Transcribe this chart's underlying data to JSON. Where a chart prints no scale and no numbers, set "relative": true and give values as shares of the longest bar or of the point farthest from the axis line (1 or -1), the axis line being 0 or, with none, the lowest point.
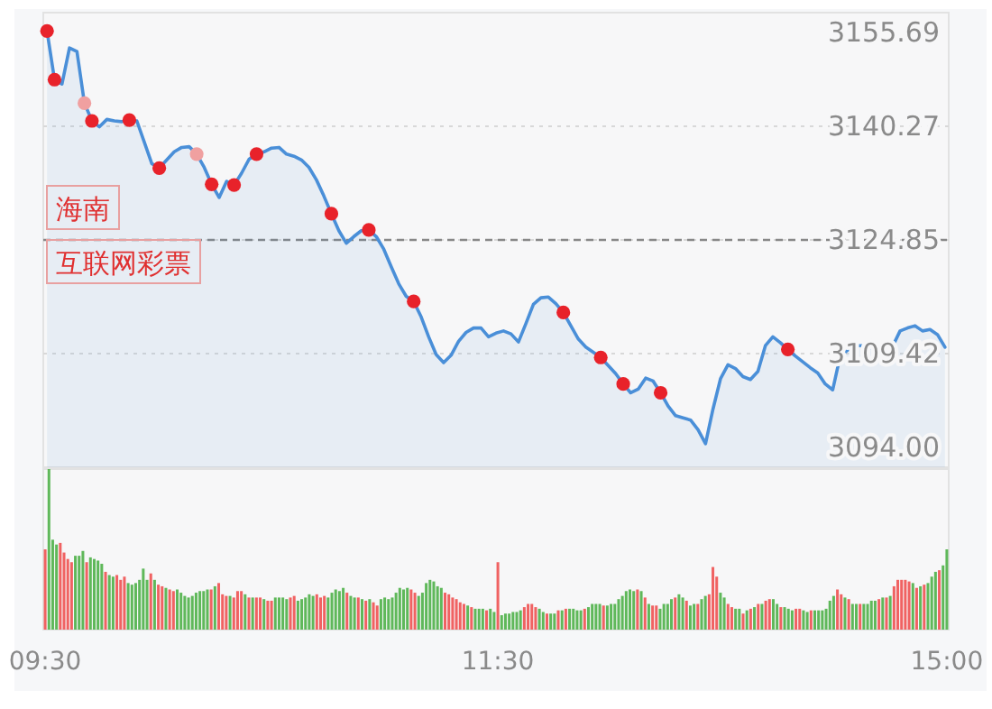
{
  "chart_data": [
    {
      "type": "area",
      "ylim": [
        3094,
        3155.69
      ],
      "yticks": [
        3155.69,
        3140.27,
        3124.85,
        3109.42,
        {
          "value": 3094,
          "label": "3094.00"
        }
      ],
      "tick_labels": "y",
      "grid": "y",
      "ref_lines": [
        {
          "axis": "y",
          "value": 3124.85,
          "color": "#888888",
          "line_style": "dashed"
        }
      ],
      "annotations": [
        "海南",
        "互联网彩票"
      ],
      "categories": [
        null,
        null,
        null,
        null,
        null,
        null,
        null,
        null,
        null,
        null,
        null,
        null,
        null,
        null,
        null,
        null,
        null,
        null,
        null,
        null,
        null,
        null,
        null,
        null,
        null,
        null,
        null,
        null,
        null,
        null,
        null,
        null,
        null,
        null,
        null,
        null,
        null,
        null,
        null,
        null,
        null,
        null,
        null,
        null,
        null,
        null,
        null,
        null,
        null,
        null,
        null,
        null,
        null,
        null,
        null,
        null,
        null,
        null,
        null,
        null,
        null,
        null,
        null,
        null,
        null,
        null,
        null,
        null,
        null,
        null,
        null,
        null,
        null,
        null,
        null,
        null,
        null,
        null,
        null,
        null,
        null,
        null,
        null,
        null,
        null,
        null,
        null,
        null,
        null,
        null,
        null,
        null,
        null,
        null,
        null,
        null,
        null,
        null,
        null,
        null,
        null,
        null,
        null,
        null,
        null,
        null,
        null,
        null,
        null,
        null,
        null,
        null,
        null,
        null,
        null,
        null,
        null,
        null,
        null,
        null,
        null
      ],
      "series": [
        {
          "color": "#4a8fd8",
          "values": [
            3153.2,
            3146.6,
            3146.0,
            3150.9,
            3150.4,
            3143.4,
            3141.0,
            3140.2,
            3141.2,
            3141.0,
            3140.9,
            3141.1,
            3141.0,
            3138.1,
            3135.2,
            3134.6,
            3135.7,
            3136.8,
            3137.4,
            3137.5,
            3136.5,
            3134.7,
            3132.4,
            3130.6,
            3132.8,
            3132.3,
            3133.9,
            3135.8,
            3136.5,
            3136.8,
            3137.3,
            3137.4,
            3136.5,
            3136.2,
            3135.7,
            3134.7,
            3133.0,
            3130.8,
            3128.4,
            3126.1,
            3124.4,
            3125.3,
            3126.1,
            3126.2,
            3125.3,
            3123.6,
            3121.2,
            3118.9,
            3117.2,
            3116.5,
            3114.4,
            3111.7,
            3109.3,
            3108.2,
            3109.2,
            3111.1,
            3112.3,
            3112.9,
            3112.9,
            3111.7,
            3112.2,
            3112.5,
            3112.1,
            3111.0,
            3113.5,
            3116.1,
            3117.0,
            3117.1,
            3116.2,
            3115.0,
            3113.2,
            3111.4,
            3110.3,
            3109.6,
            3108.9,
            3107.8,
            3106.7,
            3105.3,
            3104.1,
            3104.6,
            3106.1,
            3105.7,
            3104.1,
            3102.3,
            3101.0,
            3100.7,
            3100.4,
            3099.1,
            3097.2,
            3101.9,
            3106.0,
            3107.9,
            3107.4,
            3106.3,
            3105.9,
            3107.0,
            3110.5,
            3111.7,
            3110.9,
            3110.0,
            3109.1,
            3108.3,
            3107.5,
            3106.8,
            3105.3,
            3104.5,
            3109.1,
            3109.9,
            3110.5,
            3110.5,
            3110.4,
            3109.3,
            3108.2,
            3110.4,
            3112.5,
            3112.9,
            3113.2,
            3112.5,
            3112.7,
            3112.0,
            3110.3
          ]
        },
        {
          "type": "scatter",
          "marker": "circle",
          "values": [
            3153.2,
            3146.6,
            null,
            null,
            null,
            3143.4,
            3141.0,
            null,
            null,
            null,
            null,
            3141.1,
            null,
            null,
            null,
            3134.6,
            null,
            null,
            null,
            null,
            3136.5,
            null,
            3132.4,
            null,
            null,
            3132.3,
            null,
            null,
            3136.5,
            null,
            null,
            null,
            null,
            null,
            null,
            null,
            null,
            null,
            3128.4,
            null,
            null,
            null,
            null,
            3126.2,
            null,
            null,
            null,
            null,
            null,
            3116.5,
            null,
            null,
            null,
            null,
            null,
            null,
            null,
            null,
            null,
            null,
            null,
            null,
            null,
            null,
            null,
            null,
            null,
            null,
            null,
            3115.0,
            null,
            null,
            null,
            null,
            3108.9,
            null,
            null,
            3105.3,
            null,
            null,
            null,
            null,
            3104.1,
            null,
            null,
            null,
            null,
            null,
            null,
            null,
            null,
            null,
            null,
            null,
            null,
            null,
            null,
            null,
            null,
            3110.0,
            null,
            null,
            null,
            null,
            null,
            null,
            null,
            null,
            null,
            null,
            null,
            null,
            null,
            null,
            null,
            null,
            null,
            null,
            null,
            null,
            null
          ],
          "colors": [
            "#e8222a",
            "#e8222a",
            null,
            null,
            null,
            "#f0a0a0",
            "#e8222a",
            null,
            null,
            null,
            null,
            "#e8222a",
            null,
            null,
            null,
            "#e8222a",
            null,
            null,
            null,
            null,
            "#f0a0a0",
            null,
            "#e8222a",
            null,
            null,
            "#e8222a",
            null,
            null,
            "#e8222a",
            null,
            null,
            null,
            null,
            null,
            null,
            null,
            null,
            null,
            "#e8222a",
            null,
            null,
            null,
            null,
            "#e8222a",
            null,
            null,
            null,
            null,
            null,
            "#e8222a",
            null,
            null,
            null,
            null,
            null,
            null,
            null,
            null,
            null,
            null,
            null,
            null,
            null,
            null,
            null,
            null,
            null,
            null,
            null,
            "#e8222a",
            null,
            null,
            null,
            null,
            "#e8222a",
            null,
            null,
            "#e8222a",
            null,
            null,
            null,
            null,
            "#e8222a",
            null,
            null,
            null,
            null,
            null,
            null,
            null,
            null,
            null,
            null,
            null,
            null,
            null,
            null,
            null,
            null,
            "#e8222a",
            null,
            null,
            null,
            null,
            null,
            null,
            null,
            null,
            null,
            null,
            null,
            null,
            null,
            null,
            null,
            null,
            null,
            null,
            null,
            null,
            null
          ]
        }
      ]
    },
    {
      "type": "bar",
      "relative": true,
      "tick_labels": "x",
      "categories": [
        "09:30",
        null,
        null,
        null,
        null,
        null,
        null,
        null,
        null,
        null,
        null,
        null,
        null,
        null,
        null,
        null,
        null,
        null,
        null,
        null,
        null,
        null,
        null,
        null,
        null,
        null,
        null,
        null,
        null,
        null,
        null,
        null,
        null,
        null,
        null,
        null,
        null,
        null,
        null,
        null,
        null,
        null,
        null,
        null,
        null,
        null,
        null,
        null,
        null,
        null,
        null,
        null,
        null,
        null,
        null,
        null,
        null,
        null,
        null,
        null,
        null,
        null,
        null,
        null,
        null,
        null,
        null,
        null,
        null,
        null,
        null,
        null,
        null,
        null,
        null,
        null,
        null,
        null,
        null,
        null,
        null,
        null,
        null,
        null,
        null,
        null,
        null,
        null,
        null,
        null,
        null,
        null,
        null,
        null,
        null,
        null,
        null,
        null,
        null,
        null,
        null,
        null,
        null,
        null,
        null,
        null,
        null,
        null,
        null,
        null,
        null,
        null,
        null,
        null,
        null,
        null,
        null,
        null,
        null,
        null,
        "11:30",
        null,
        null,
        null,
        null,
        null,
        null,
        null,
        null,
        null,
        null,
        null,
        null,
        null,
        null,
        null,
        null,
        null,
        null,
        null,
        null,
        null,
        null,
        null,
        null,
        null,
        null,
        null,
        null,
        null,
        null,
        null,
        null,
        null,
        null,
        null,
        null,
        null,
        null,
        null,
        null,
        null,
        null,
        null,
        null,
        null,
        null,
        null,
        null,
        null,
        null,
        null,
        null,
        null,
        null,
        null,
        null,
        null,
        null,
        null,
        null,
        null,
        null,
        null,
        null,
        null,
        null,
        null,
        null,
        null,
        null,
        null,
        null,
        null,
        null,
        null,
        null,
        null,
        null,
        null,
        null,
        null,
        null,
        null,
        null,
        null,
        null,
        null,
        null,
        null,
        null,
        null,
        null,
        null,
        null,
        null,
        null,
        null,
        null,
        null,
        null,
        null,
        null,
        null,
        null,
        null,
        null,
        null,
        null,
        null,
        null,
        null,
        null,
        null,
        null,
        null,
        null,
        null,
        null,
        "15:00"
      ],
      "values": [
        0.5,
        1.0,
        0.56,
        0.53,
        0.54,
        0.48,
        0.44,
        0.42,
        0.46,
        0.46,
        0.49,
        0.42,
        0.45,
        0.44,
        0.43,
        0.41,
        0.36,
        0.34,
        0.33,
        0.34,
        0.31,
        0.33,
        0.29,
        0.28,
        0.29,
        0.31,
        0.38,
        0.31,
        0.35,
        0.31,
        0.28,
        0.27,
        0.26,
        0.25,
        0.24,
        0.25,
        0.23,
        0.21,
        0.2,
        0.21,
        0.23,
        0.24,
        0.24,
        0.25,
        0.25,
        0.27,
        0.29,
        0.22,
        0.21,
        0.21,
        0.2,
        0.24,
        0.24,
        0.22,
        0.2,
        0.2,
        0.2,
        0.2,
        0.19,
        0.18,
        0.18,
        0.2,
        0.2,
        0.2,
        0.19,
        0.2,
        0.21,
        0.18,
        0.19,
        0.2,
        0.22,
        0.21,
        0.22,
        0.2,
        0.21,
        0.2,
        0.23,
        0.25,
        0.24,
        0.26,
        0.23,
        0.21,
        0.2,
        0.2,
        0.19,
        0.18,
        0.19,
        0.17,
        0.15,
        0.19,
        0.2,
        0.19,
        0.2,
        0.23,
        0.26,
        0.25,
        0.26,
        0.25,
        0.23,
        0.21,
        0.23,
        0.29,
        0.31,
        0.3,
        0.27,
        0.26,
        0.23,
        0.22,
        0.2,
        0.19,
        0.17,
        0.16,
        0.15,
        0.14,
        0.13,
        0.13,
        0.13,
        0.12,
        0.13,
        0.11,
        0.42,
        0.09,
        0.1,
        0.1,
        0.11,
        0.11,
        0.12,
        0.14,
        0.16,
        0.16,
        0.14,
        0.13,
        0.11,
        0.1,
        0.1,
        0.1,
        0.12,
        0.12,
        0.13,
        0.13,
        0.13,
        0.12,
        0.12,
        0.13,
        0.14,
        0.16,
        0.16,
        0.16,
        0.15,
        0.15,
        0.16,
        0.16,
        0.19,
        0.21,
        0.24,
        0.25,
        0.24,
        0.25,
        0.24,
        0.2,
        0.16,
        0.15,
        0.15,
        0.13,
        0.16,
        0.16,
        0.19,
        0.2,
        0.22,
        0.2,
        0.18,
        0.15,
        0.16,
        0.16,
        0.19,
        0.21,
        0.22,
        0.39,
        0.33,
        0.23,
        0.2,
        0.16,
        0.14,
        0.13,
        0.13,
        0.1,
        0.12,
        0.13,
        0.14,
        0.16,
        0.16,
        0.18,
        0.19,
        0.19,
        0.16,
        0.14,
        0.14,
        0.13,
        0.12,
        0.13,
        0.13,
        0.12,
        0.11,
        0.12,
        0.12,
        0.12,
        0.12,
        0.13,
        0.18,
        0.21,
        0.25,
        0.22,
        0.2,
        0.19,
        0.16,
        0.16,
        0.16,
        0.16,
        0.16,
        0.18,
        0.18,
        0.19,
        0.2,
        0.2,
        0.21,
        0.27,
        0.31,
        0.31,
        0.31,
        0.3,
        0.29,
        0.26,
        0.27,
        0.28,
        0.29,
        0.33,
        0.36,
        0.37,
        0.4,
        0.5
      ],
      "colors": [
        "#f06262",
        "#5fb85a",
        "#5fb85a",
        "#5fb85a",
        "#f06262",
        "#f06262",
        "#f06262",
        "#f06262",
        "#5fb85a",
        "#5fb85a",
        "#5fb85a",
        "#f06262",
        "#5fb85a",
        "#5fb85a",
        "#5fb85a",
        "#5fb85a",
        "#f06262",
        "#5fb85a",
        "#5fb85a",
        "#f06262",
        "#f06262",
        "#f06262",
        "#5fb85a",
        "#5fb85a",
        "#5fb85a",
        "#5fb85a",
        "#5fb85a",
        "#5fb85a",
        "#f06262",
        "#5fb85a",
        "#f06262",
        "#f06262",
        "#5fb85a",
        "#f06262",
        "#f06262",
        "#5fb85a",
        "#5fb85a",
        "#5fb85a",
        "#5fb85a",
        "#5fb85a",
        "#5fb85a",
        "#5fb85a",
        "#5fb85a",
        "#5fb85a",
        "#f06262",
        "#5fb85a",
        "#f06262",
        "#f06262",
        "#f06262",
        "#5fb85a",
        "#f06262",
        "#f06262",
        "#f06262",
        "#5fb85a",
        "#f06262",
        "#5fb85a",
        "#f06262",
        "#f06262",
        "#5fb85a",
        "#f06262",
        "#f06262",
        "#5fb85a",
        "#5fb85a",
        "#5fb85a",
        "#5fb85a",
        "#f06262",
        "#f06262",
        "#5fb85a",
        "#5fb85a",
        "#5fb85a",
        "#5fb85a",
        "#5fb85a",
        "#f06262",
        "#f06262",
        "#f06262",
        "#5fb85a",
        "#5fb85a",
        "#5fb85a",
        "#5fb85a",
        "#5fb85a",
        "#f06262",
        "#5fb85a",
        "#5fb85a",
        "#f06262",
        "#5fb85a",
        "#f06262",
        "#5fb85a",
        "#f06262",
        "#f06262",
        "#5fb85a",
        "#5fb85a",
        "#5fb85a",
        "#5fb85a",
        "#5fb85a",
        "#5fb85a",
        "#5fb85a",
        "#5fb85a",
        "#f06262",
        "#f06262",
        "#5fb85a",
        "#5fb85a",
        "#5fb85a",
        "#5fb85a",
        "#5fb85a",
        "#5fb85a",
        "#5fb85a",
        "#f06262",
        "#f06262",
        "#f06262",
        "#f06262",
        "#f06262",
        "#f06262",
        "#5fb85a",
        "#f06262",
        "#5fb85a",
        "#5fb85a",
        "#5fb85a",
        "#f06262",
        "#5fb85a",
        "#5fb85a",
        "#f06262",
        "#5fb85a",
        "#5fb85a",
        "#5fb85a",
        "#5fb85a",
        "#5fb85a",
        "#5fb85a",
        "#f06262",
        "#f06262",
        "#f06262",
        "#f06262",
        "#5fb85a",
        "#5fb85a",
        "#f06262",
        "#5fb85a",
        "#5fb85a",
        "#f06262",
        "#5fb85a",
        "#f06262",
        "#5fb85a",
        "#5fb85a",
        "#5fb85a",
        "#5fb85a",
        "#f06262",
        "#5fb85a",
        "#5fb85a",
        "#5fb85a",
        "#5fb85a",
        "#f06262",
        "#5fb85a",
        "#5fb85a",
        "#5fb85a",
        "#5fb85a",
        "#5fb85a",
        "#5fb85a",
        "#5fb85a",
        "#5fb85a",
        "#f06262",
        "#5fb85a",
        "#f06262",
        "#5fb85a",
        "#f06262",
        "#f06262",
        "#5fb85a",
        "#5fb85a",
        "#5fb85a",
        "#5fb85a",
        "#f06262",
        "#5fb85a",
        "#5fb85a",
        "#f06262",
        "#5fb85a",
        "#5fb85a",
        "#f06262",
        "#5fb85a",
        "#5fb85a",
        "#f06262",
        "#f06262",
        "#f06262",
        "#5fb85a",
        "#5fb85a",
        "#f06262",
        "#f06262",
        "#5fb85a",
        "#5fb85a",
        "#f06262",
        "#5fb85a",
        "#f06262",
        "#5fb85a",
        "#f06262",
        "#5fb85a",
        "#f06262",
        "#f06262",
        "#5fb85a",
        "#5fb85a",
        "#f06262",
        "#5fb85a",
        "#5fb85a",
        "#5fb85a",
        "#f06262",
        "#f06262",
        "#5fb85a",
        "#5fb85a",
        "#f06262",
        "#5fb85a",
        "#5fb85a",
        "#5fb85a",
        "#5fb85a",
        "#5fb85a",
        "#5fb85a",
        "#f06262",
        "#f06262",
        "#5fb85a",
        "#f06262",
        "#5fb85a",
        "#5fb85a",
        "#f06262",
        "#5fb85a",
        "#5fb85a",
        "#5fb85a",
        "#5fb85a",
        "#f06262",
        "#5fb85a",
        "#f06262",
        "#5fb85a",
        "#f06262",
        "#f06262",
        "#f06262",
        "#f06262",
        "#f06262",
        "#5fb85a",
        "#f06262",
        "#5fb85a",
        "#f06262",
        "#5fb85a",
        "#5fb85a",
        "#5fb85a",
        "#f06262",
        "#5fb85a",
        "#5fb85a"
      ]
    }
  ]
}
